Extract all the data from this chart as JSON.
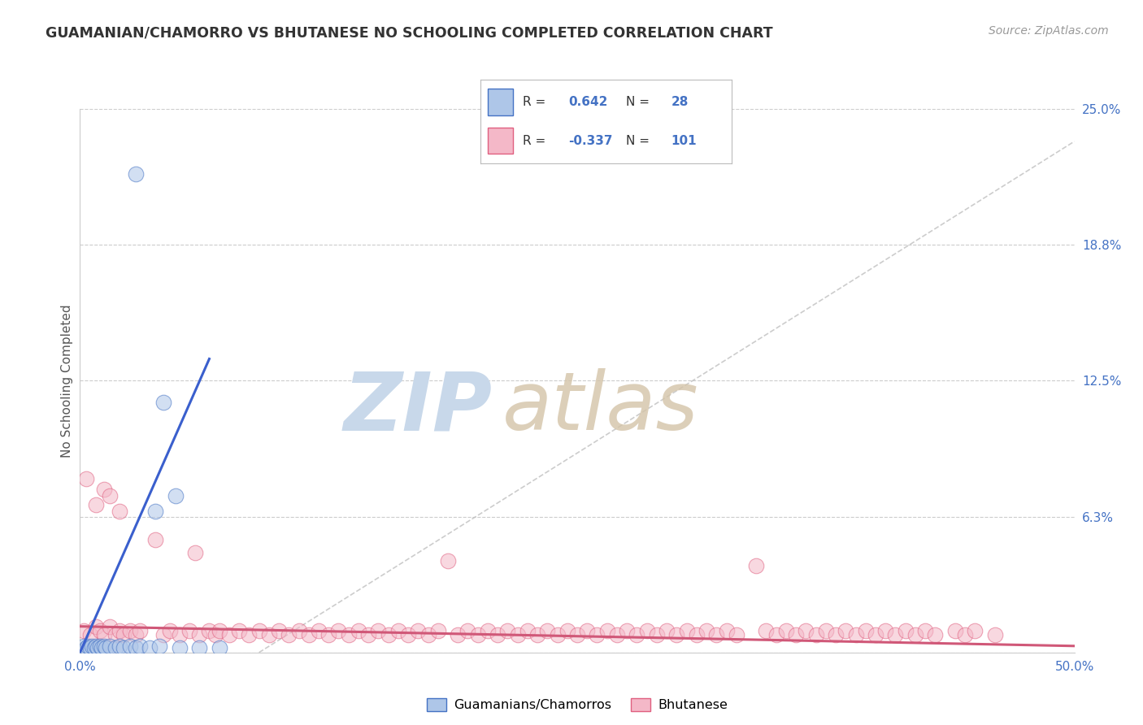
{
  "title": "GUAMANIAN/CHAMORRO VS BHUTANESE NO SCHOOLING COMPLETED CORRELATION CHART",
  "source": "Source: ZipAtlas.com",
  "ylabel": "No Schooling Completed",
  "xlim": [
    0.0,
    0.5
  ],
  "ylim": [
    0.0,
    0.25
  ],
  "ytick_positions": [
    0.0,
    0.0625,
    0.125,
    0.1875,
    0.25
  ],
  "ytick_labels": [
    "",
    "6.3%",
    "12.5%",
    "18.8%",
    "25.0%"
  ],
  "r_guam": "0.642",
  "n_guam": "28",
  "r_bhutan": "-0.337",
  "n_bhutan": "101",
  "color_guam_fill": "#aec6e8",
  "color_guam_edge": "#4472c4",
  "color_bhutan_fill": "#f4b8c8",
  "color_bhutan_edge": "#e06080",
  "color_guam_line": "#3a5fcd",
  "color_bhutan_line": "#d05878",
  "background_color": "#ffffff",
  "grid_color": "#cccccc",
  "title_color": "#333333",
  "source_color": "#999999",
  "axis_label_color": "#555555",
  "tick_color": "#4472c4",
  "guam_points": [
    [
      0.002,
      0.003
    ],
    [
      0.003,
      0.002
    ],
    [
      0.004,
      0.003
    ],
    [
      0.005,
      0.002
    ],
    [
      0.006,
      0.003
    ],
    [
      0.007,
      0.002
    ],
    [
      0.008,
      0.003
    ],
    [
      0.009,
      0.002
    ],
    [
      0.01,
      0.003
    ],
    [
      0.011,
      0.002
    ],
    [
      0.012,
      0.003
    ],
    [
      0.013,
      0.002
    ],
    [
      0.015,
      0.003
    ],
    [
      0.018,
      0.002
    ],
    [
      0.02,
      0.003
    ],
    [
      0.022,
      0.002
    ],
    [
      0.025,
      0.003
    ],
    [
      0.028,
      0.002
    ],
    [
      0.03,
      0.003
    ],
    [
      0.035,
      0.002
    ],
    [
      0.04,
      0.003
    ],
    [
      0.05,
      0.002
    ],
    [
      0.06,
      0.002
    ],
    [
      0.07,
      0.002
    ],
    [
      0.038,
      0.065
    ],
    [
      0.042,
      0.115
    ],
    [
      0.048,
      0.072
    ],
    [
      0.028,
      0.22
    ]
  ],
  "bhutan_points": [
    [
      0.002,
      0.01
    ],
    [
      0.005,
      0.008
    ],
    [
      0.008,
      0.012
    ],
    [
      0.01,
      0.01
    ],
    [
      0.012,
      0.008
    ],
    [
      0.015,
      0.012
    ],
    [
      0.018,
      0.008
    ],
    [
      0.02,
      0.01
    ],
    [
      0.022,
      0.008
    ],
    [
      0.025,
      0.01
    ],
    [
      0.028,
      0.008
    ],
    [
      0.03,
      0.01
    ],
    [
      0.003,
      0.08
    ],
    [
      0.008,
      0.068
    ],
    [
      0.012,
      0.075
    ],
    [
      0.015,
      0.072
    ],
    [
      0.02,
      0.065
    ],
    [
      0.038,
      0.052
    ],
    [
      0.042,
      0.008
    ],
    [
      0.045,
      0.01
    ],
    [
      0.05,
      0.008
    ],
    [
      0.055,
      0.01
    ],
    [
      0.058,
      0.046
    ],
    [
      0.06,
      0.008
    ],
    [
      0.065,
      0.01
    ],
    [
      0.068,
      0.008
    ],
    [
      0.07,
      0.01
    ],
    [
      0.075,
      0.008
    ],
    [
      0.08,
      0.01
    ],
    [
      0.085,
      0.008
    ],
    [
      0.09,
      0.01
    ],
    [
      0.095,
      0.008
    ],
    [
      0.1,
      0.01
    ],
    [
      0.105,
      0.008
    ],
    [
      0.11,
      0.01
    ],
    [
      0.115,
      0.008
    ],
    [
      0.12,
      0.01
    ],
    [
      0.125,
      0.008
    ],
    [
      0.13,
      0.01
    ],
    [
      0.135,
      0.008
    ],
    [
      0.14,
      0.01
    ],
    [
      0.145,
      0.008
    ],
    [
      0.15,
      0.01
    ],
    [
      0.155,
      0.008
    ],
    [
      0.16,
      0.01
    ],
    [
      0.165,
      0.008
    ],
    [
      0.17,
      0.01
    ],
    [
      0.175,
      0.008
    ],
    [
      0.18,
      0.01
    ],
    [
      0.185,
      0.042
    ],
    [
      0.19,
      0.008
    ],
    [
      0.195,
      0.01
    ],
    [
      0.2,
      0.008
    ],
    [
      0.205,
      0.01
    ],
    [
      0.21,
      0.008
    ],
    [
      0.215,
      0.01
    ],
    [
      0.22,
      0.008
    ],
    [
      0.225,
      0.01
    ],
    [
      0.23,
      0.008
    ],
    [
      0.235,
      0.01
    ],
    [
      0.24,
      0.008
    ],
    [
      0.245,
      0.01
    ],
    [
      0.25,
      0.008
    ],
    [
      0.255,
      0.01
    ],
    [
      0.26,
      0.008
    ],
    [
      0.265,
      0.01
    ],
    [
      0.27,
      0.008
    ],
    [
      0.275,
      0.01
    ],
    [
      0.28,
      0.008
    ],
    [
      0.285,
      0.01
    ],
    [
      0.29,
      0.008
    ],
    [
      0.295,
      0.01
    ],
    [
      0.3,
      0.008
    ],
    [
      0.305,
      0.01
    ],
    [
      0.31,
      0.008
    ],
    [
      0.315,
      0.01
    ],
    [
      0.32,
      0.008
    ],
    [
      0.325,
      0.01
    ],
    [
      0.33,
      0.008
    ],
    [
      0.34,
      0.04
    ],
    [
      0.345,
      0.01
    ],
    [
      0.35,
      0.008
    ],
    [
      0.355,
      0.01
    ],
    [
      0.36,
      0.008
    ],
    [
      0.365,
      0.01
    ],
    [
      0.37,
      0.008
    ],
    [
      0.375,
      0.01
    ],
    [
      0.38,
      0.008
    ],
    [
      0.385,
      0.01
    ],
    [
      0.39,
      0.008
    ],
    [
      0.395,
      0.01
    ],
    [
      0.4,
      0.008
    ],
    [
      0.405,
      0.01
    ],
    [
      0.41,
      0.008
    ],
    [
      0.415,
      0.01
    ],
    [
      0.42,
      0.008
    ],
    [
      0.425,
      0.01
    ],
    [
      0.43,
      0.008
    ],
    [
      0.44,
      0.01
    ],
    [
      0.445,
      0.008
    ],
    [
      0.45,
      0.01
    ],
    [
      0.46,
      0.008
    ]
  ],
  "guam_line": {
    "x0": 0.0,
    "x1": 0.065,
    "y0": 0.0,
    "y1": 0.135
  },
  "bhutan_line": {
    "x0": 0.0,
    "x1": 0.5,
    "y0": 0.012,
    "y1": 0.003
  },
  "diag_line": {
    "x0": 0.09,
    "x1": 0.5,
    "y0": 0.0,
    "y1": 0.235
  }
}
